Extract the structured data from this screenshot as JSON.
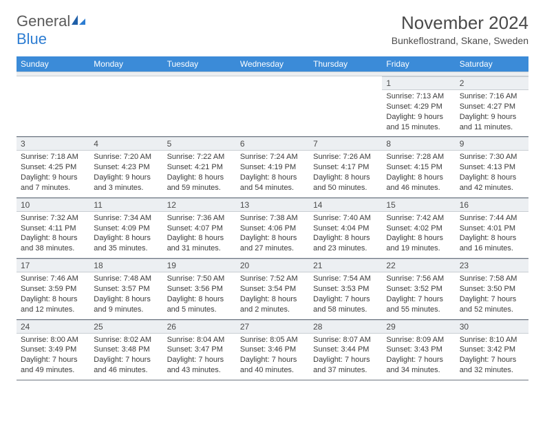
{
  "colors": {
    "header_bg": "#3b8bd8",
    "header_text": "#ffffff",
    "daynum_bg": "#eceff2",
    "body_text": "#3a3a3a",
    "title_text": "#4a4a4a",
    "logo_gray": "#5a5a5a",
    "logo_blue": "#2d7dd2",
    "row_border": "#6b7480"
  },
  "logo": {
    "part1": "General",
    "part2": "Blue"
  },
  "title": "November 2024",
  "location": "Bunkeflostrand, Skane, Sweden",
  "day_names": [
    "Sunday",
    "Monday",
    "Tuesday",
    "Wednesday",
    "Thursday",
    "Friday",
    "Saturday"
  ],
  "weeks": [
    [
      null,
      null,
      null,
      null,
      null,
      {
        "n": "1",
        "sr": "7:13 AM",
        "ss": "4:29 PM",
        "dl1": "9 hours",
        "dl2": "and 15 minutes."
      },
      {
        "n": "2",
        "sr": "7:16 AM",
        "ss": "4:27 PM",
        "dl1": "9 hours",
        "dl2": "and 11 minutes."
      }
    ],
    [
      {
        "n": "3",
        "sr": "7:18 AM",
        "ss": "4:25 PM",
        "dl1": "9 hours",
        "dl2": "and 7 minutes."
      },
      {
        "n": "4",
        "sr": "7:20 AM",
        "ss": "4:23 PM",
        "dl1": "9 hours",
        "dl2": "and 3 minutes."
      },
      {
        "n": "5",
        "sr": "7:22 AM",
        "ss": "4:21 PM",
        "dl1": "8 hours",
        "dl2": "and 59 minutes."
      },
      {
        "n": "6",
        "sr": "7:24 AM",
        "ss": "4:19 PM",
        "dl1": "8 hours",
        "dl2": "and 54 minutes."
      },
      {
        "n": "7",
        "sr": "7:26 AM",
        "ss": "4:17 PM",
        "dl1": "8 hours",
        "dl2": "and 50 minutes."
      },
      {
        "n": "8",
        "sr": "7:28 AM",
        "ss": "4:15 PM",
        "dl1": "8 hours",
        "dl2": "and 46 minutes."
      },
      {
        "n": "9",
        "sr": "7:30 AM",
        "ss": "4:13 PM",
        "dl1": "8 hours",
        "dl2": "and 42 minutes."
      }
    ],
    [
      {
        "n": "10",
        "sr": "7:32 AM",
        "ss": "4:11 PM",
        "dl1": "8 hours",
        "dl2": "and 38 minutes."
      },
      {
        "n": "11",
        "sr": "7:34 AM",
        "ss": "4:09 PM",
        "dl1": "8 hours",
        "dl2": "and 35 minutes."
      },
      {
        "n": "12",
        "sr": "7:36 AM",
        "ss": "4:07 PM",
        "dl1": "8 hours",
        "dl2": "and 31 minutes."
      },
      {
        "n": "13",
        "sr": "7:38 AM",
        "ss": "4:06 PM",
        "dl1": "8 hours",
        "dl2": "and 27 minutes."
      },
      {
        "n": "14",
        "sr": "7:40 AM",
        "ss": "4:04 PM",
        "dl1": "8 hours",
        "dl2": "and 23 minutes."
      },
      {
        "n": "15",
        "sr": "7:42 AM",
        "ss": "4:02 PM",
        "dl1": "8 hours",
        "dl2": "and 19 minutes."
      },
      {
        "n": "16",
        "sr": "7:44 AM",
        "ss": "4:01 PM",
        "dl1": "8 hours",
        "dl2": "and 16 minutes."
      }
    ],
    [
      {
        "n": "17",
        "sr": "7:46 AM",
        "ss": "3:59 PM",
        "dl1": "8 hours",
        "dl2": "and 12 minutes."
      },
      {
        "n": "18",
        "sr": "7:48 AM",
        "ss": "3:57 PM",
        "dl1": "8 hours",
        "dl2": "and 9 minutes."
      },
      {
        "n": "19",
        "sr": "7:50 AM",
        "ss": "3:56 PM",
        "dl1": "8 hours",
        "dl2": "and 5 minutes."
      },
      {
        "n": "20",
        "sr": "7:52 AM",
        "ss": "3:54 PM",
        "dl1": "8 hours",
        "dl2": "and 2 minutes."
      },
      {
        "n": "21",
        "sr": "7:54 AM",
        "ss": "3:53 PM",
        "dl1": "7 hours",
        "dl2": "and 58 minutes."
      },
      {
        "n": "22",
        "sr": "7:56 AM",
        "ss": "3:52 PM",
        "dl1": "7 hours",
        "dl2": "and 55 minutes."
      },
      {
        "n": "23",
        "sr": "7:58 AM",
        "ss": "3:50 PM",
        "dl1": "7 hours",
        "dl2": "and 52 minutes."
      }
    ],
    [
      {
        "n": "24",
        "sr": "8:00 AM",
        "ss": "3:49 PM",
        "dl1": "7 hours",
        "dl2": "and 49 minutes."
      },
      {
        "n": "25",
        "sr": "8:02 AM",
        "ss": "3:48 PM",
        "dl1": "7 hours",
        "dl2": "and 46 minutes."
      },
      {
        "n": "26",
        "sr": "8:04 AM",
        "ss": "3:47 PM",
        "dl1": "7 hours",
        "dl2": "and 43 minutes."
      },
      {
        "n": "27",
        "sr": "8:05 AM",
        "ss": "3:46 PM",
        "dl1": "7 hours",
        "dl2": "and 40 minutes."
      },
      {
        "n": "28",
        "sr": "8:07 AM",
        "ss": "3:44 PM",
        "dl1": "7 hours",
        "dl2": "and 37 minutes."
      },
      {
        "n": "29",
        "sr": "8:09 AM",
        "ss": "3:43 PM",
        "dl1": "7 hours",
        "dl2": "and 34 minutes."
      },
      {
        "n": "30",
        "sr": "8:10 AM",
        "ss": "3:42 PM",
        "dl1": "7 hours",
        "dl2": "and 32 minutes."
      }
    ]
  ],
  "labels": {
    "sunrise_prefix": "Sunrise: ",
    "sunset_prefix": "Sunset: ",
    "daylight_prefix": "Daylight: "
  }
}
